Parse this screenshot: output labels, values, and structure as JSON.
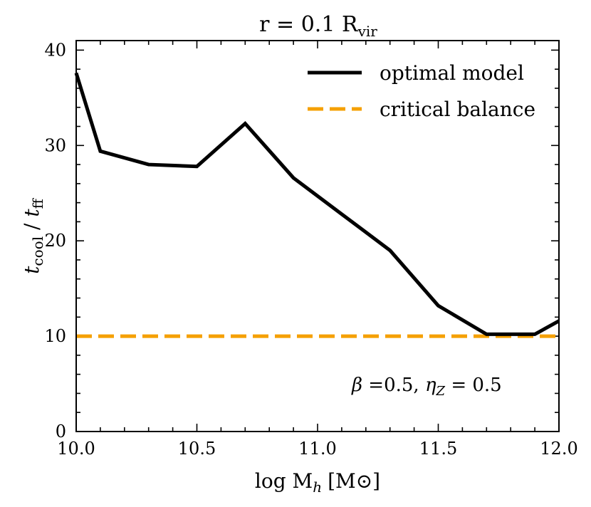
{
  "chart_data": {
    "type": "line",
    "title": "r = 0.1 R_vir",
    "title_main": "r = 0.1 R",
    "title_sub": "vir",
    "xlabel": "log M_h [M_⊙]",
    "xlabel_main": "log M",
    "xlabel_sub": "h",
    "xlabel_unit": "[M⊙]",
    "ylabel": "t_cool / t_ff",
    "ylabel_t1": "t",
    "ylabel_sub1": "cool",
    "ylabel_sep": " / ",
    "ylabel_t2": "t",
    "ylabel_sub2": "ff",
    "xlim": [
      10.0,
      12.0
    ],
    "ylim": [
      0,
      41
    ],
    "xticks": [
      10.0,
      10.5,
      11.0,
      11.5,
      12.0
    ],
    "xtick_labels": [
      "10.0",
      "10.5",
      "11.0",
      "11.5",
      "12.0"
    ],
    "yticks": [
      0,
      10,
      20,
      30,
      40
    ],
    "ytick_labels": [
      "0",
      "10",
      "20",
      "30",
      "40"
    ],
    "legend_position": "top-right",
    "grid": false,
    "series": [
      {
        "name": "optimal model",
        "style": "solid",
        "color": "#000000",
        "x": [
          10.0,
          10.1,
          10.3,
          10.5,
          10.7,
          10.9,
          11.1,
          11.3,
          11.5,
          11.7,
          11.9,
          12.0
        ],
        "y": [
          37.6,
          29.4,
          28.0,
          27.8,
          32.3,
          26.6,
          22.8,
          19.0,
          13.2,
          10.2,
          10.2,
          11.6
        ]
      },
      {
        "name": "critical balance",
        "style": "dashed",
        "color": "#f5a000",
        "x": [
          10.0,
          12.0
        ],
        "y": [
          10.0,
          10.0
        ]
      }
    ],
    "annotation": {
      "beta_symbol": "β",
      "beta_value": " =0.5, ",
      "eta_symbol": "η",
      "eta_sub": "Z",
      "eta_value": " = 0.5"
    }
  }
}
